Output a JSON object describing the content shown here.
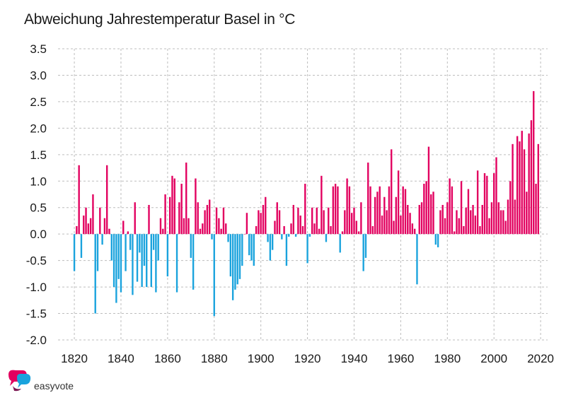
{
  "chart_data": {
    "type": "bar",
    "title": "Abweichung Jahrestemperatur Basel in °C",
    "xlabel": "",
    "ylabel": "",
    "xlim": [
      1813,
      2023
    ],
    "ylim": [
      -2.0,
      3.5
    ],
    "yticks": [
      "3.5",
      "3.0",
      "2.5",
      "2.0",
      "1.5",
      "1.0",
      "0.5",
      "0.0",
      "-0.5",
      "-1.0",
      "-1.5",
      "-2.0"
    ],
    "ytick_values": [
      3.5,
      3.0,
      2.5,
      2.0,
      1.5,
      1.0,
      0.5,
      0.0,
      -0.5,
      -1.0,
      -1.5,
      -2.0
    ],
    "xticks": [
      "1820",
      "1840",
      "1860",
      "1880",
      "1900",
      "1920",
      "1940",
      "1960",
      "1980",
      "2000",
      "2020"
    ],
    "xtick_values": [
      1820,
      1840,
      1860,
      1880,
      1900,
      1920,
      1940,
      1960,
      1980,
      2000,
      2020
    ],
    "grid": true,
    "positive_color": "#e2005f",
    "negative_color": "#1aa3dd",
    "x": [
      1820,
      1821,
      1822,
      1823,
      1824,
      1825,
      1826,
      1827,
      1828,
      1829,
      1830,
      1831,
      1832,
      1833,
      1834,
      1835,
      1836,
      1837,
      1838,
      1839,
      1840,
      1841,
      1842,
      1843,
      1844,
      1845,
      1846,
      1847,
      1848,
      1849,
      1850,
      1851,
      1852,
      1853,
      1854,
      1855,
      1856,
      1857,
      1858,
      1859,
      1860,
      1861,
      1862,
      1863,
      1864,
      1865,
      1866,
      1867,
      1868,
      1869,
      1870,
      1871,
      1872,
      1873,
      1874,
      1875,
      1876,
      1877,
      1878,
      1879,
      1880,
      1881,
      1882,
      1883,
      1884,
      1885,
      1886,
      1887,
      1888,
      1889,
      1890,
      1891,
      1892,
      1893,
      1894,
      1895,
      1896,
      1897,
      1898,
      1899,
      1900,
      1901,
      1902,
      1903,
      1904,
      1905,
      1906,
      1907,
      1908,
      1909,
      1910,
      1911,
      1912,
      1913,
      1914,
      1915,
      1916,
      1917,
      1918,
      1919,
      1920,
      1921,
      1922,
      1923,
      1924,
      1925,
      1926,
      1927,
      1928,
      1929,
      1930,
      1931,
      1932,
      1933,
      1934,
      1935,
      1936,
      1937,
      1938,
      1939,
      1940,
      1941,
      1942,
      1943,
      1944,
      1945,
      1946,
      1947,
      1948,
      1949,
      1950,
      1951,
      1952,
      1953,
      1954,
      1955,
      1956,
      1957,
      1958,
      1959,
      1960,
      1961,
      1962,
      1963,
      1964,
      1965,
      1966,
      1967,
      1968,
      1969,
      1970,
      1971,
      1972,
      1973,
      1974,
      1975,
      1976,
      1977,
      1978,
      1979,
      1980,
      1981,
      1982,
      1983,
      1984,
      1985,
      1986,
      1987,
      1988,
      1989,
      1990,
      1991,
      1992,
      1993,
      1994,
      1995,
      1996,
      1997,
      1998,
      1999,
      2000,
      2001,
      2002,
      2003,
      2004,
      2005,
      2006,
      2007,
      2008,
      2009,
      2010,
      2011,
      2012,
      2013,
      2014,
      2015,
      2016,
      2017,
      2018,
      2019
    ],
    "values": [
      -0.7,
      0.15,
      1.3,
      -0.45,
      0.35,
      0.5,
      0.2,
      0.3,
      0.75,
      -1.5,
      -0.7,
      0.5,
      -0.2,
      0.3,
      1.3,
      0.1,
      -0.5,
      -1.0,
      -1.3,
      -0.85,
      -1.1,
      0.25,
      -0.7,
      0.05,
      -0.3,
      -1.15,
      0.6,
      -0.9,
      -0.35,
      -1.0,
      -0.6,
      -1.0,
      0.55,
      -1.0,
      -0.3,
      -1.1,
      -0.5,
      0.3,
      0.1,
      0.75,
      -0.8,
      0.7,
      1.1,
      1.05,
      -1.1,
      0.6,
      0.95,
      0.3,
      1.35,
      0.3,
      -0.45,
      -1.05,
      1.05,
      0.6,
      0.1,
      0.2,
      0.45,
      0.55,
      0.65,
      -0.1,
      -1.55,
      0.5,
      0.3,
      0.1,
      0.5,
      0.2,
      -0.15,
      -0.8,
      -1.25,
      -1.05,
      -0.95,
      -0.85,
      -0.6,
      0.0,
      0.4,
      -0.4,
      -0.5,
      -0.6,
      0.15,
      0.45,
      0.4,
      0.55,
      0.7,
      -0.15,
      -0.5,
      -0.3,
      0.25,
      0.6,
      0.45,
      -0.1,
      0.15,
      -0.6,
      -0.05,
      0.2,
      0.55,
      -0.05,
      0.5,
      0.35,
      0.15,
      0.95,
      -0.55,
      -0.05,
      0.5,
      0.2,
      0.5,
      0.1,
      1.1,
      0.45,
      -0.15,
      0.5,
      0.15,
      0.9,
      0.95,
      0.9,
      -0.35,
      0.05,
      0.45,
      1.05,
      0.9,
      0.4,
      0.5,
      0.25,
      0.05,
      0.6,
      -0.7,
      -0.45,
      1.35,
      0.9,
      0.15,
      0.7,
      0.8,
      0.9,
      0.35,
      0.7,
      0.45,
      0.9,
      1.6,
      0.25,
      0.7,
      1.2,
      0.35,
      0.9,
      0.85,
      0.55,
      0.4,
      0.2,
      0.1,
      -0.95,
      0.55,
      0.6,
      0.95,
      1.0,
      1.65,
      0.75,
      0.8,
      -0.2,
      -0.25,
      0.45,
      0.55,
      0.3,
      0.6,
      1.05,
      0.9,
      0.05,
      0.45,
      0.3,
      1.0,
      0.15,
      0.5,
      0.85,
      0.45,
      0.55,
      0.35,
      1.2,
      0.15,
      0.55,
      1.15,
      1.1,
      0.3,
      0.6,
      1.15,
      1.45,
      0.6,
      0.45,
      0.45,
      0.25,
      0.65,
      1.0,
      1.7,
      0.65,
      1.85,
      1.75,
      1.95,
      1.6,
      0.8,
      1.9,
      2.15,
      2.7,
      0.95,
      1.7
    ]
  },
  "brand": {
    "name": "easyvote"
  }
}
